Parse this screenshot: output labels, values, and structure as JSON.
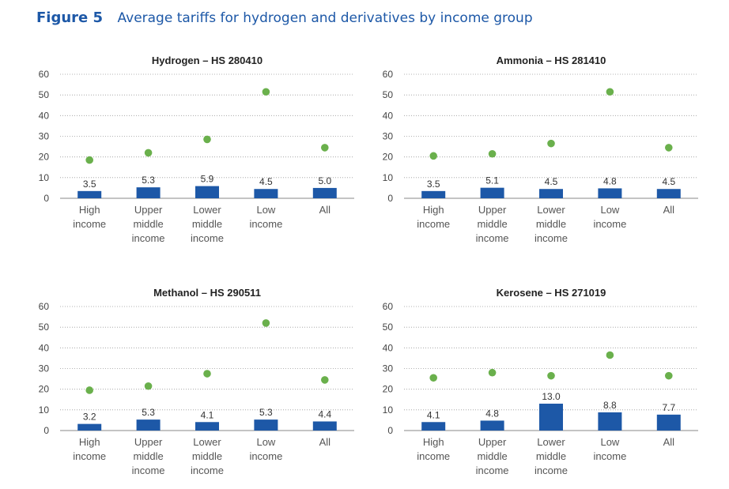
{
  "figure": {
    "label": "Figure 5",
    "title": "Average tariffs for hydrogen and derivatives by income group"
  },
  "colors": {
    "bar": "#1d58a7",
    "dot": "#6ab04c",
    "title": "#1d58a7"
  },
  "chart_data": [
    {
      "type": "bar",
      "title": "Hydrogen – HS 280410",
      "categories": [
        [
          "High",
          "income"
        ],
        [
          "Upper",
          "middle",
          "income"
        ],
        [
          "Lower",
          "middle",
          "income"
        ],
        [
          "Low",
          "income"
        ],
        [
          "All"
        ]
      ],
      "series": [
        {
          "kind": "bar",
          "values": [
            3.5,
            5.3,
            5.9,
            4.5,
            5.0
          ],
          "labels": [
            "3.5",
            "5.3",
            "5.9",
            "4.5",
            "5.0"
          ]
        },
        {
          "kind": "dot",
          "values": [
            18.5,
            22,
            28.5,
            51.5,
            24.5
          ]
        }
      ],
      "ylim": [
        0,
        60
      ],
      "yticks": [
        0,
        10,
        20,
        30,
        40,
        50,
        60
      ],
      "grid": true
    },
    {
      "type": "bar",
      "title": "Ammonia – HS 281410",
      "categories": [
        [
          "High",
          "income"
        ],
        [
          "Upper",
          "middle",
          "income"
        ],
        [
          "Lower",
          "middle",
          "income"
        ],
        [
          "Low",
          "income"
        ],
        [
          "All"
        ]
      ],
      "series": [
        {
          "kind": "bar",
          "values": [
            3.5,
            5.1,
            4.5,
            4.8,
            4.5
          ],
          "labels": [
            "3.5",
            "5.1",
            "4.5",
            "4.8",
            "4.5"
          ]
        },
        {
          "kind": "dot",
          "values": [
            20.5,
            21.5,
            26.5,
            51.5,
            24.5
          ]
        }
      ],
      "ylim": [
        0,
        60
      ],
      "yticks": [
        0,
        10,
        20,
        30,
        40,
        50,
        60
      ],
      "grid": true
    },
    {
      "type": "bar",
      "title": "Methanol – HS 290511",
      "categories": [
        [
          "High",
          "income"
        ],
        [
          "Upper",
          "middle",
          "income"
        ],
        [
          "Lower",
          "middle",
          "income"
        ],
        [
          "Low",
          "income"
        ],
        [
          "All"
        ]
      ],
      "series": [
        {
          "kind": "bar",
          "values": [
            3.2,
            5.3,
            4.1,
            5.3,
            4.4
          ],
          "labels": [
            "3.2",
            "5.3",
            "4.1",
            "5.3",
            "4.4"
          ]
        },
        {
          "kind": "dot",
          "values": [
            19.5,
            21.5,
            27.5,
            52,
            24.5
          ]
        }
      ],
      "ylim": [
        0,
        60
      ],
      "yticks": [
        0,
        10,
        20,
        30,
        40,
        50,
        60
      ],
      "grid": true
    },
    {
      "type": "bar",
      "title": "Kerosene – HS 271019",
      "categories": [
        [
          "High",
          "income"
        ],
        [
          "Upper",
          "middle",
          "income"
        ],
        [
          "Lower",
          "middle",
          "income"
        ],
        [
          "Low",
          "income"
        ],
        [
          "All"
        ]
      ],
      "series": [
        {
          "kind": "bar",
          "values": [
            4.1,
            4.8,
            13.0,
            8.8,
            7.7
          ],
          "labels": [
            "4.1",
            "4.8",
            "13.0",
            "8.8",
            "7.7"
          ]
        },
        {
          "kind": "dot",
          "values": [
            25.5,
            28,
            26.5,
            36.5,
            26.5
          ]
        }
      ],
      "ylim": [
        0,
        60
      ],
      "yticks": [
        0,
        10,
        20,
        30,
        40,
        50,
        60
      ],
      "grid": true
    }
  ]
}
